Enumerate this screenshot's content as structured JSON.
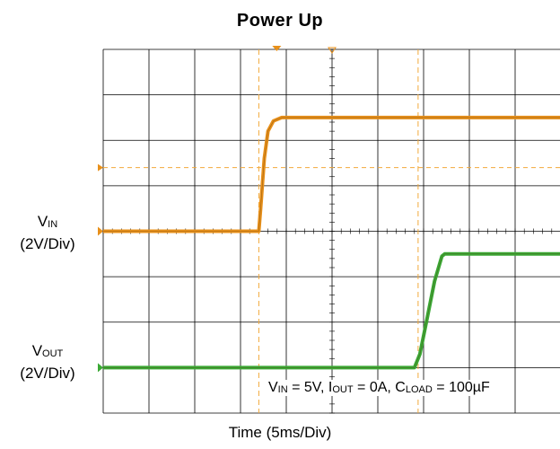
{
  "chart_data": {
    "type": "line",
    "title": "Power Up",
    "xlabel": "Time  (5ms/Div)",
    "divisions": {
      "x": 10,
      "y": 8
    },
    "x_unit": "ms",
    "x_per_div": 5,
    "volts_per_div": 2,
    "grid": true,
    "series": [
      {
        "label_main": "V",
        "label_sub": "IN",
        "label_scale": "(2V/Div)",
        "color": "#e8901a",
        "ground_div": 4.0,
        "points_ms": [
          [
            0,
            0
          ],
          [
            17.0,
            0
          ],
          [
            17.2,
            1.0
          ],
          [
            17.6,
            3.2
          ],
          [
            18.0,
            4.4
          ],
          [
            18.6,
            4.85
          ],
          [
            19.5,
            5.0
          ],
          [
            50,
            5.0
          ]
        ]
      },
      {
        "label_main": "V",
        "label_sub": "OUT",
        "label_scale": "(2V/Div)",
        "color": "#3ba935",
        "ground_div": 1.0,
        "points_ms": [
          [
            0,
            0
          ],
          [
            34.0,
            0
          ],
          [
            34.6,
            0.6
          ],
          [
            35.4,
            2.2
          ],
          [
            36.2,
            3.8
          ],
          [
            37.0,
            4.9
          ],
          [
            37.3,
            5.0
          ],
          [
            50,
            5.0
          ]
        ]
      }
    ],
    "cursors_ms": [
      17.0,
      34.4
    ],
    "conditions": {
      "vin_main": "V",
      "vin_sub": "IN",
      "vin_val": " = 5V, ",
      "iout_main": "I",
      "iout_sub": "OUT",
      "iout_val": " = 0A, ",
      "cload_main": "C",
      "cload_sub": "LOAD",
      "cload_val": " = 100µF"
    }
  }
}
